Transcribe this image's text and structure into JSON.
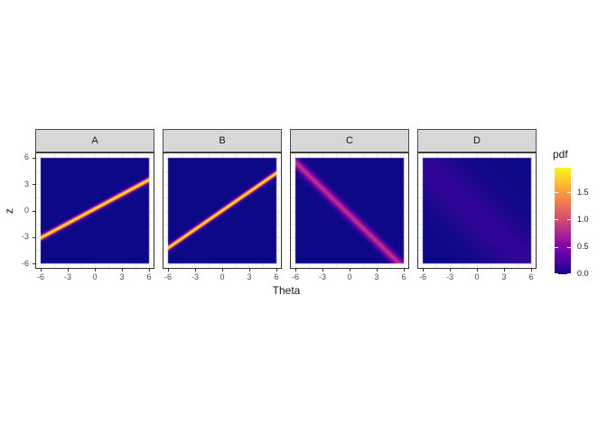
{
  "chart_data": {
    "type": "heatmap",
    "facet_variable_values": [
      "A",
      "B",
      "C",
      "D"
    ],
    "facets": [
      {
        "label": "A",
        "band": {
          "mean_slope": 0.55,
          "mean_intercept": 0.2,
          "sd": 0.2,
          "peak_pdf": 1.95
        }
      },
      {
        "label": "B",
        "band": {
          "mean_slope": 0.71,
          "mean_intercept": 0.0,
          "sd": 0.2,
          "peak_pdf": 1.95
        }
      },
      {
        "label": "C",
        "band": {
          "mean_slope": -1.0,
          "mean_intercept": -0.5,
          "sd": 0.48,
          "peak_pdf": 0.83
        }
      },
      {
        "label": "D",
        "band": {
          "mean_slope": -1.0,
          "mean_intercept": -0.5,
          "sd": 3.0,
          "peak_pdf": 0.13
        }
      }
    ],
    "x": {
      "label": "Theta",
      "ticks": [
        -6,
        -3,
        0,
        3,
        6
      ],
      "domain": [
        -6,
        6
      ],
      "expanded_range": [
        -6.6,
        6.6
      ]
    },
    "y": {
      "label": "z",
      "ticks": [
        6,
        3,
        0,
        -3,
        -6
      ],
      "domain": [
        -6,
        6
      ],
      "expanded_range": [
        -6.6,
        6.6
      ]
    },
    "gridline_step": 1.5,
    "legend": {
      "title": "pdf",
      "ticks": [
        0.0,
        0.5,
        1.0,
        1.5
      ],
      "scale_min": 0,
      "scale_max": 1.95,
      "position": "right"
    },
    "colormap": {
      "name": "plasma",
      "stops": [
        "#0D0887",
        "#41049D",
        "#6A00A8",
        "#8F0DA4",
        "#B12A90",
        "#CC4778",
        "#E16462",
        "#F1844B",
        "#FCA636",
        "#FCCE25",
        "#F0F921"
      ]
    }
  },
  "theme": {
    "background": "#FFFFFF",
    "strip_fill": "#D7D7D7",
    "strip_border": "#4D4D4D",
    "panel_border": "#333333",
    "gridline": "#E6E6E6",
    "tick_mark": "#333333",
    "tick_label_color": "#4D4D4D",
    "title_color": "#1A1A1A",
    "legend_tick_color": "#FFFFFF"
  }
}
